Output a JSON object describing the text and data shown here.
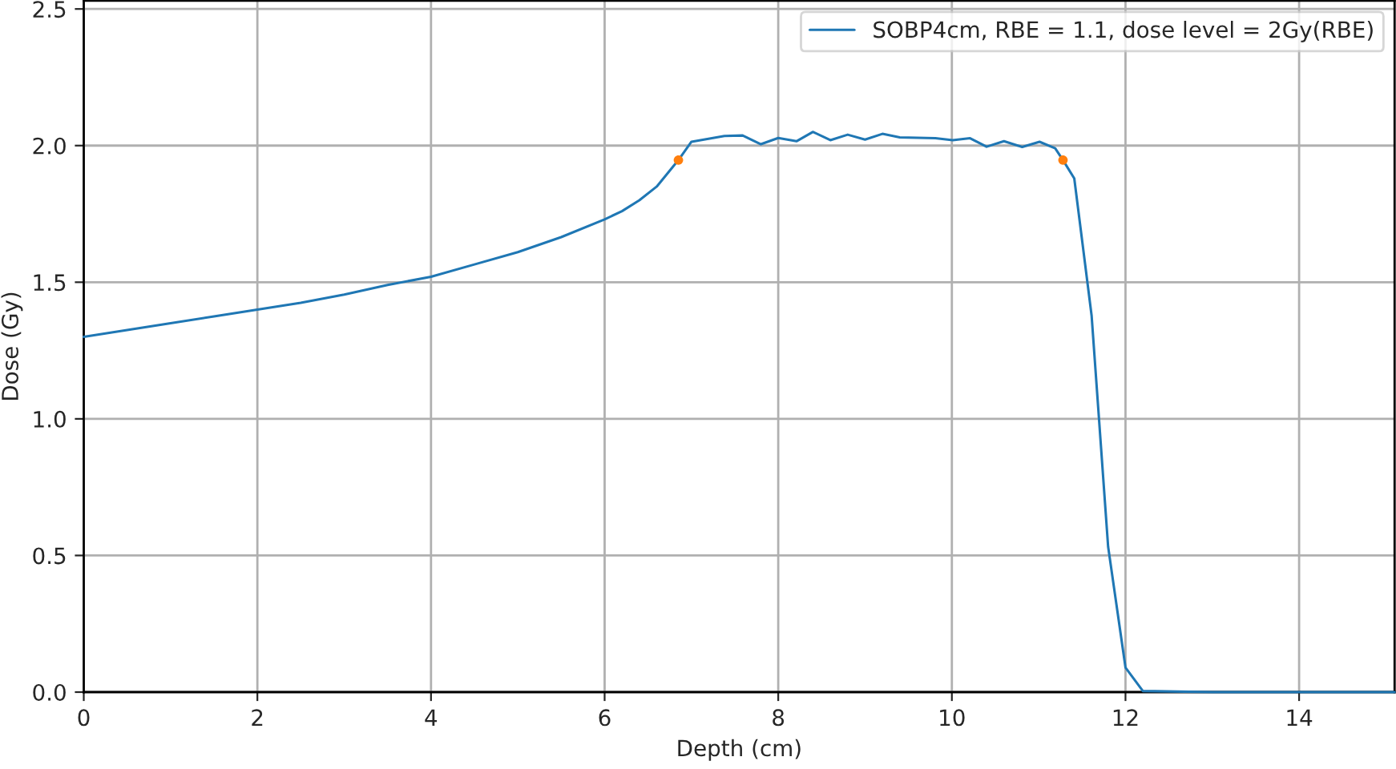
{
  "chart_data": {
    "type": "line",
    "xlabel": "Depth (cm)",
    "ylabel": "Dose (Gy)",
    "xlim": [
      0,
      15.1
    ],
    "ylim": [
      0,
      2.53
    ],
    "xticks": [
      0,
      2,
      4,
      6,
      8,
      10,
      12,
      14
    ],
    "yticks": [
      {
        "value": 0,
        "label": "0.0"
      },
      0.5,
      {
        "value": 1,
        "label": "1.0"
      },
      1.5,
      {
        "value": 2,
        "label": "2.0"
      },
      2.5
    ],
    "grid": true,
    "legend": "top right",
    "line_style": "solid",
    "series": [
      {
        "name": "SOBP4cm, RBE = 1.1, dose level = 2Gy(RBE)",
        "marker": "none",
        "color": "#1f77b4",
        "x": [
          0,
          0.5,
          1,
          1.5,
          2,
          2.5,
          3,
          3.5,
          4,
          4.5,
          5,
          5.5,
          6,
          6.2,
          6.4,
          6.6,
          6.85,
          7.0,
          7.38,
          7.59,
          7.8,
          8.0,
          8.21,
          8.4,
          8.6,
          8.8,
          9.0,
          9.2,
          9.4,
          9.81,
          10.01,
          10.21,
          10.4,
          10.6,
          10.81,
          11.01,
          11.19,
          11.28,
          11.41,
          11.61,
          11.8,
          12.0,
          12.2,
          13,
          14,
          15.1
        ],
        "values": [
          1.3,
          1.325,
          1.35,
          1.375,
          1.4,
          1.425,
          1.455,
          1.49,
          1.52,
          1.565,
          1.61,
          1.665,
          1.73,
          1.76,
          1.8,
          1.85,
          1.947,
          2.014,
          2.035,
          2.037,
          2.005,
          2.028,
          2.016,
          2.05,
          2.02,
          2.04,
          2.022,
          2.043,
          2.03,
          2.027,
          2.02,
          2.027,
          1.996,
          2.016,
          1.995,
          2.014,
          1.99,
          1.947,
          1.88,
          1.377,
          0.532,
          0.09,
          0.004,
          0,
          0,
          0
        ]
      },
      {
        "type": "scatter",
        "marker": "circle",
        "color": "#ff7f0e",
        "x": [
          6.85,
          11.28
        ],
        "values": [
          1.947,
          1.947
        ]
      }
    ]
  }
}
